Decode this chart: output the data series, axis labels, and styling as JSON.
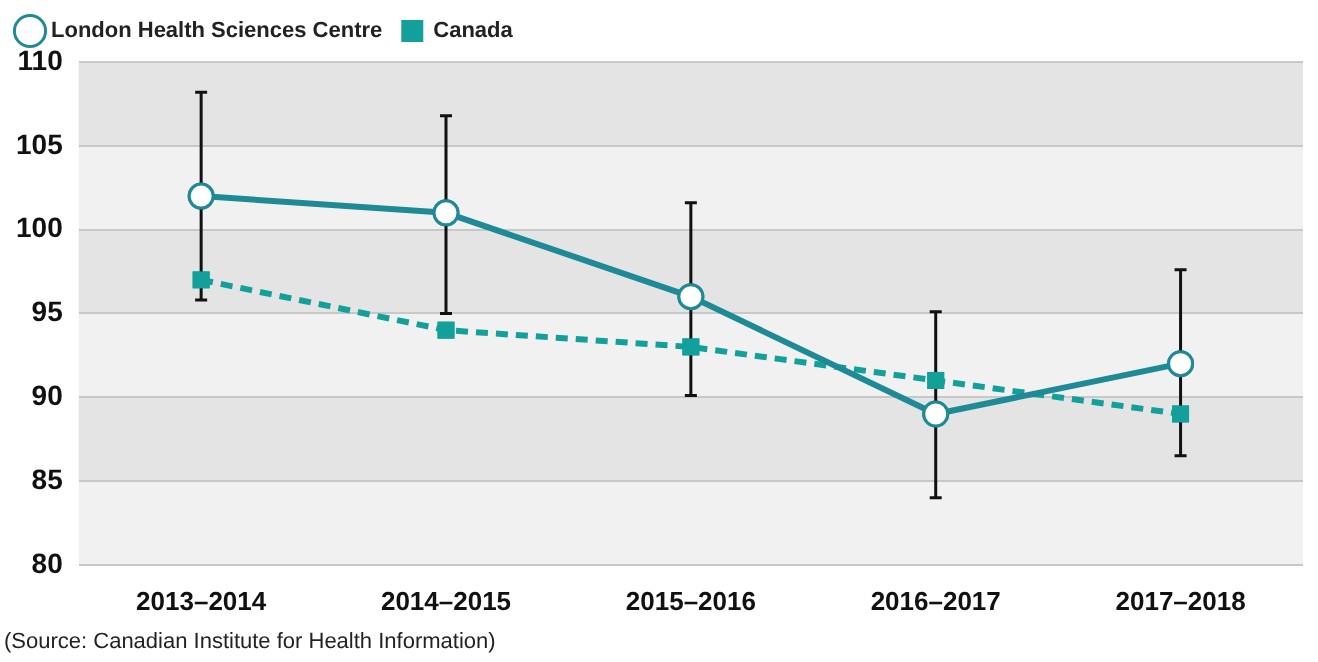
{
  "chart_data": {
    "type": "line",
    "categories": [
      "2013–2014",
      "2014–2015",
      "2015–2016",
      "2016–2017",
      "2017–2018"
    ],
    "series": [
      {
        "name": "London Health Sciences Centre",
        "color": "#1e8a96",
        "values": [
          102,
          101,
          96,
          89,
          92
        ],
        "errors": [
          [
            95.8,
            108.2
          ],
          [
            95,
            106.8
          ],
          [
            90.1,
            101.6
          ],
          [
            84,
            95.1
          ],
          [
            86.5,
            97.6
          ]
        ],
        "marker": "circle",
        "line_style": "solid"
      },
      {
        "name": "Canada",
        "color": "#14a09a",
        "values": [
          97,
          94,
          93,
          91,
          89
        ],
        "marker": "square",
        "line_style": "dashed"
      }
    ],
    "ylim": [
      80,
      110
    ],
    "yticks": [
      80,
      85,
      90,
      95,
      100,
      105,
      110
    ],
    "grid": "y",
    "legend": "top left",
    "annotations": [
      "(Source: Canadian Institute for Health Information)"
    ]
  }
}
